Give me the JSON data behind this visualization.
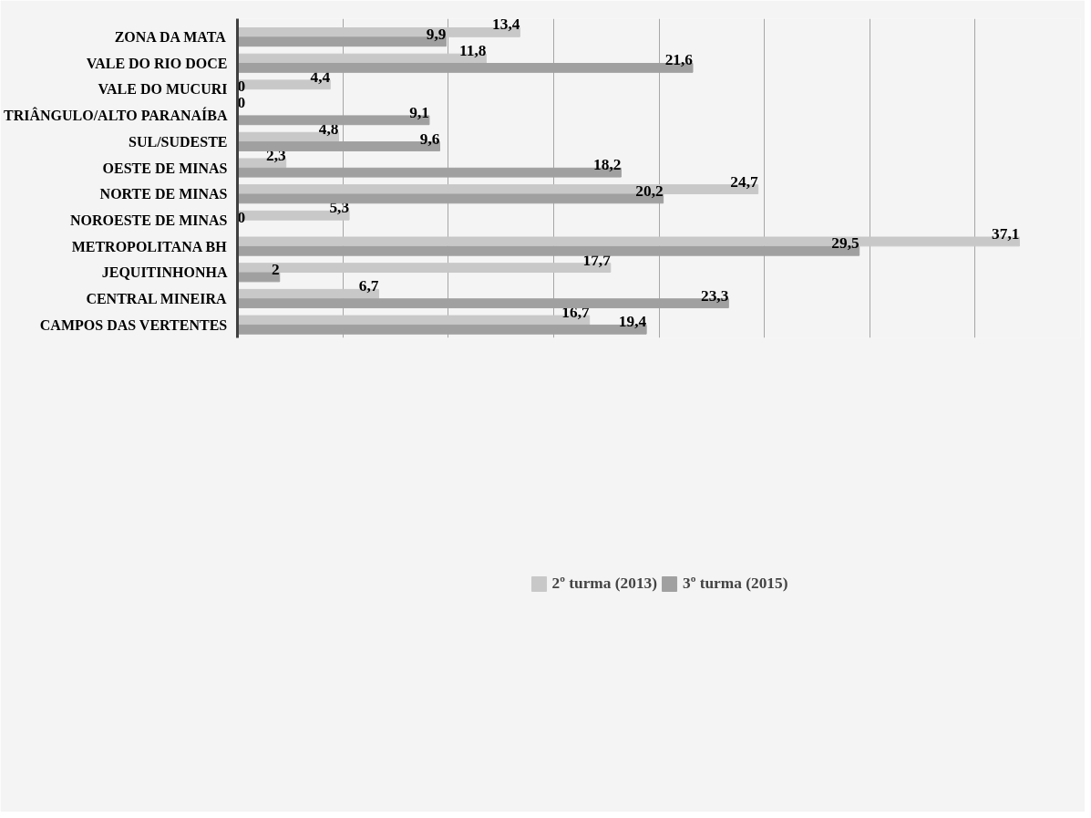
{
  "chart_data": {
    "type": "bar",
    "orientation": "horizontal",
    "categories": [
      "ZONA DA MATA",
      "VALE DO RIO DOCE",
      "VALE DO MUCURI",
      "TRIÂNGULO/ALTO PARANAÍBA",
      "SUL/SUDESTE",
      "OESTE DE MINAS",
      "NORTE DE MINAS",
      "NOROESTE DE MINAS",
      "METROPOLITANA BH",
      "JEQUITINHONHA",
      "CENTRAL MINEIRA",
      "CAMPOS DAS VERTENTES"
    ],
    "series": [
      {
        "name": "2º turma (2013)",
        "color": "#c8c8c8",
        "values": [
          13.4,
          11.8,
          4.4,
          0,
          4.8,
          2.3,
          24.7,
          5.3,
          37.1,
          17.7,
          6.7,
          16.7
        ],
        "value_labels": [
          "13,4",
          "11,8",
          "4,4",
          "0",
          "4,8",
          "2,3",
          "24,7",
          "5,3",
          "37,1",
          "17,7",
          "6,7",
          "16,7"
        ]
      },
      {
        "name": "3º turma (2015)",
        "color": "#a0a0a0",
        "values": [
          9.9,
          21.6,
          0,
          9.1,
          9.6,
          18.2,
          20.2,
          0,
          29.5,
          2,
          23.3,
          19.4
        ],
        "value_labels": [
          "9,9",
          "21,6",
          "0",
          "9,1",
          "9,6",
          "18,2",
          "20,2",
          "0",
          "29,5",
          "2",
          "23,3",
          "19,4"
        ]
      }
    ],
    "xlim": [
      0,
      40
    ],
    "xticks": [
      {
        "value": 0,
        "label": null
      },
      {
        "value": 5,
        "label": null
      },
      {
        "value": 10,
        "label": null
      },
      {
        "value": 15,
        "label": null
      },
      {
        "value": 20,
        "label": null
      },
      {
        "value": 25,
        "label": null
      },
      {
        "value": 30,
        "label": null
      },
      {
        "value": 35,
        "label": null
      },
      {
        "value": 40,
        "label": null
      }
    ],
    "grid": "x",
    "tick_labels": "y",
    "legend": "bottom"
  }
}
